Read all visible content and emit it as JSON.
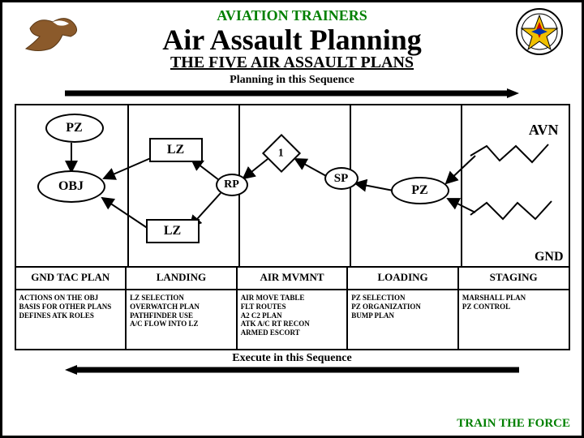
{
  "colors": {
    "accent": "#008000",
    "black": "#000000",
    "white": "#ffffff"
  },
  "header": {
    "super_title": "AVIATION TRAINERS",
    "main_title": "Air Assault Planning",
    "sub_title": "THE FIVE AIR ASSAULT PLANS"
  },
  "sequence_labels": {
    "planning": "Planning in this Sequence",
    "execute": "Execute in this Sequence"
  },
  "diagram": {
    "nodes": {
      "pz_top": "PZ",
      "obj": "OBJ",
      "lz_top": "LZ",
      "lz_bottom": "LZ",
      "rp": "RP",
      "one": "1",
      "sp": "SP",
      "pz_right": "PZ",
      "avn": "AVN",
      "gnd": "GND"
    }
  },
  "columns": {
    "headers": [
      "GND TAC PLAN",
      "LANDING",
      "AIR MVMNT",
      "LOADING",
      "STAGING"
    ],
    "details": [
      [
        "ACTIONS ON THE OBJ",
        "BASIS FOR OTHER PLANS",
        "DEFINES ATK ROLES"
      ],
      [
        "LZ SELECTION",
        "OVERWATCH PLAN",
        "PATHFINDER USE",
        "A/C FLOW INTO LZ"
      ],
      [
        "AIR MOVE TABLE",
        "FLT ROUTES",
        "A2 C2 PLAN",
        "ATK A/C RT RECON",
        "ARMED ESCORT"
      ],
      [
        "PZ SELECTION",
        "PZ ORGANIZATION",
        "BUMP PLAN"
      ],
      [
        "MARSHALL PLAN",
        "PZ CONTROL"
      ]
    ]
  },
  "footer": "TRAIN THE FORCE"
}
